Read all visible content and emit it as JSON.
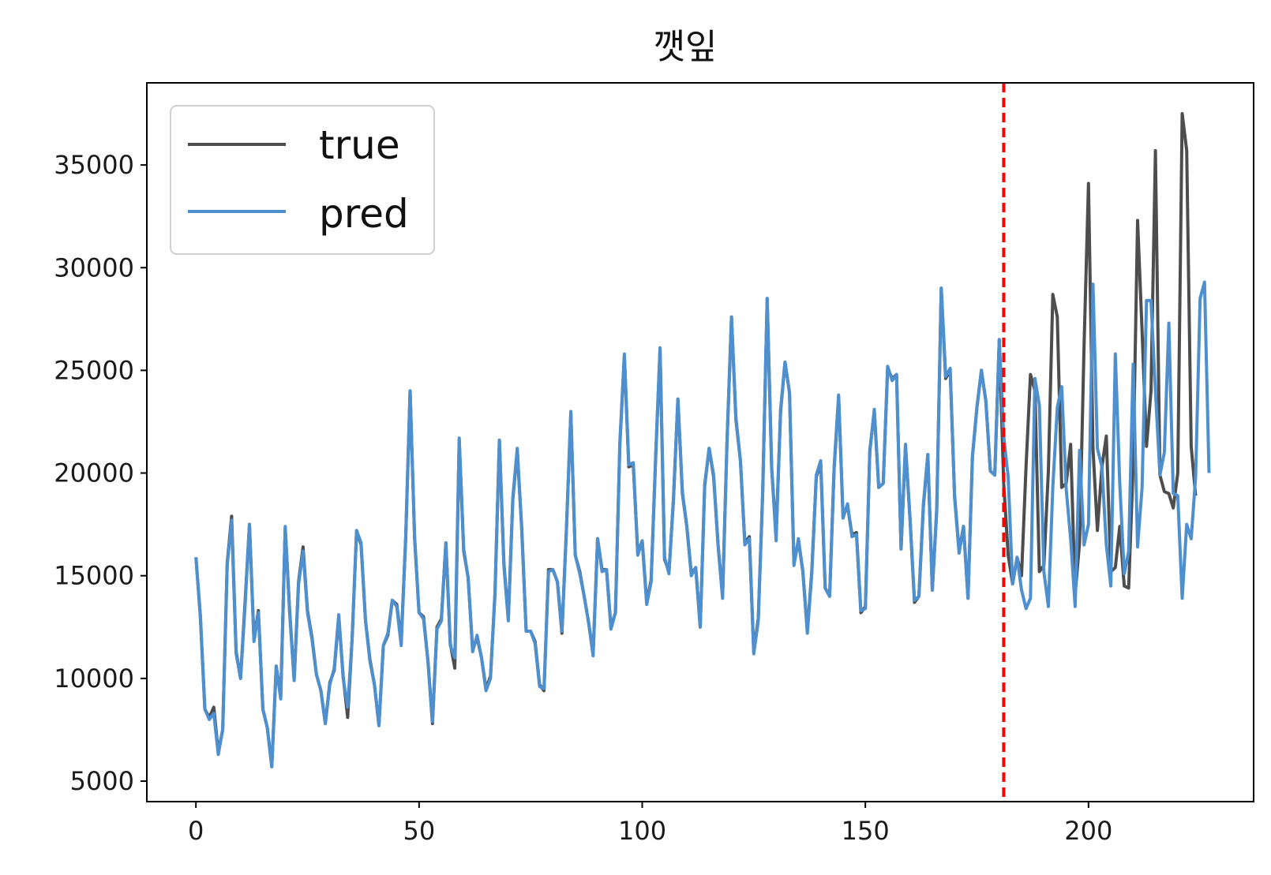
{
  "chart_data": {
    "type": "line",
    "title": "깻잎",
    "xlabel": "",
    "ylabel": "",
    "xlim": [
      -11,
      237
    ],
    "ylim": [
      4000,
      39000
    ],
    "xticks": [
      0,
      50,
      100,
      150,
      200
    ],
    "yticks": [
      5000,
      10000,
      15000,
      20000,
      25000,
      30000,
      35000
    ],
    "grid": false,
    "legend_position": "top-left",
    "split_line": {
      "x": 181,
      "color": "#ff0000",
      "style": "dashed"
    },
    "series": [
      {
        "name": "true",
        "color": "#4d4d4d",
        "x_start": 0,
        "values": [
          15900,
          13000,
          8500,
          8100,
          8600,
          6400,
          7500,
          15600,
          17900,
          11300,
          10000,
          13700,
          17500,
          11900,
          13300,
          8500,
          7600,
          5700,
          10600,
          9100,
          17300,
          13300,
          9900,
          14700,
          16400,
          13300,
          12000,
          10200,
          9400,
          7800,
          9800,
          10400,
          13000,
          10100,
          8100,
          11900,
          17200,
          16500,
          12800,
          10900,
          9700,
          7700,
          11600,
          12100,
          13800,
          13600,
          11800,
          16800,
          24000,
          16800,
          13200,
          13000,
          10800,
          7800,
          12500,
          12900,
          16600,
          11700,
          10500,
          21600,
          16200,
          14900,
          11400,
          12000,
          11000,
          9500,
          10100,
          14100,
          21600,
          15600,
          12900,
          18700,
          21100,
          17300,
          12300,
          12300,
          11800,
          9700,
          9400,
          15300,
          15300,
          14700,
          12200,
          17200,
          22900,
          16000,
          15200,
          14000,
          12700,
          11200,
          16800,
          15300,
          15300,
          12500,
          13200,
          21400,
          25700,
          20300,
          20400,
          16100,
          16700,
          13700,
          14800,
          20700,
          26000,
          15800,
          15200,
          18700,
          23600,
          19000,
          17400,
          15100,
          15400,
          12500,
          19400,
          21200,
          19800,
          16500,
          14000,
          21500,
          27600,
          22600,
          20600,
          16600,
          16900,
          11300,
          12900,
          19000,
          28500,
          20200,
          17000,
          23000,
          25400,
          23900,
          15600,
          16700,
          15200,
          12300,
          15200,
          19800,
          20500,
          14400,
          14000,
          20200,
          23700,
          17900,
          18400,
          17000,
          17100,
          13200,
          13500,
          21100,
          23000,
          19300,
          19500,
          25100,
          24600,
          24800,
          16300,
          21300,
          17800,
          13700,
          14000,
          18400,
          20900,
          14300,
          18200,
          29000,
          24600,
          25000,
          18900,
          16200,
          17400,
          13900,
          20800,
          23200,
          25000,
          23500,
          20100,
          19900,
          26500,
          19500,
          16000,
          14600,
          15900,
          15000,
          20300,
          24800,
          24000,
          15200,
          15500,
          20100,
          28700,
          27600,
          19300,
          19500,
          21400,
          14100,
          16600,
          26200,
          34100,
          21200,
          17200,
          20300,
          21800,
          15200,
          15400,
          17400,
          14500,
          14400,
          20400,
          32300,
          26900,
          21300,
          24000,
          35700,
          19900,
          19100,
          19000,
          18300,
          20000,
          37500,
          35700,
          21300,
          18900
        ]
      },
      {
        "name": "pred",
        "color": "#4e8fcf",
        "x_start": 0,
        "values": [
          15900,
          13100,
          8500,
          8000,
          8300,
          6300,
          7500,
          15500,
          17700,
          11200,
          10000,
          13500,
          17500,
          11800,
          13200,
          8500,
          7600,
          5700,
          10600,
          9000,
          17400,
          13200,
          9900,
          14600,
          16200,
          13200,
          11900,
          10200,
          9400,
          7800,
          9700,
          10500,
          13100,
          10000,
          8600,
          11900,
          17200,
          16600,
          12800,
          10800,
          9700,
          7700,
          11600,
          12200,
          13800,
          13500,
          11600,
          16900,
          24000,
          16900,
          13200,
          12900,
          10800,
          7900,
          12400,
          12800,
          16600,
          11600,
          11000,
          21700,
          16300,
          14900,
          11300,
          12100,
          11000,
          9400,
          10000,
          14200,
          21600,
          15500,
          12800,
          18800,
          21200,
          17200,
          12300,
          12300,
          11700,
          9600,
          9500,
          15200,
          15300,
          14700,
          12300,
          17100,
          23000,
          16000,
          15100,
          14000,
          12700,
          11100,
          16800,
          15200,
          15300,
          12400,
          13200,
          21500,
          25800,
          20400,
          20500,
          16000,
          16700,
          13600,
          14700,
          20800,
          26100,
          15900,
          15100,
          18800,
          23600,
          19100,
          17400,
          15000,
          15400,
          12500,
          19500,
          21200,
          19900,
          16500,
          13900,
          21500,
          27600,
          22700,
          20600,
          16500,
          16800,
          11200,
          12800,
          19100,
          28500,
          20300,
          16700,
          23100,
          25400,
          23900,
          15500,
          16800,
          15200,
          12200,
          15100,
          19900,
          20600,
          14400,
          14000,
          20300,
          23800,
          17800,
          18500,
          16900,
          17000,
          13300,
          13400,
          21000,
          23100,
          19300,
          19500,
          25200,
          24500,
          24800,
          16300,
          21400,
          17800,
          13800,
          14000,
          18500,
          20900,
          14300,
          18300,
          29000,
          24700,
          25100,
          18800,
          16100,
          17400,
          13900,
          20800,
          23200,
          25000,
          23500,
          20100,
          19900,
          26500,
          21800,
          19800,
          14600,
          15900,
          14300,
          13400,
          13900,
          24600,
          23300,
          15200,
          13500,
          19300,
          23200,
          24200,
          19200,
          16800,
          13500,
          21100,
          16500,
          17500,
          29200,
          21200,
          20300,
          16500,
          14500,
          25800,
          19500,
          15100,
          16200,
          25300,
          16400,
          19300,
          28400,
          28400,
          24000,
          19900,
          21000,
          27300,
          19000,
          18900,
          13900,
          17500,
          16800,
          19800,
          28500,
          29300,
          20000
        ]
      }
    ]
  }
}
